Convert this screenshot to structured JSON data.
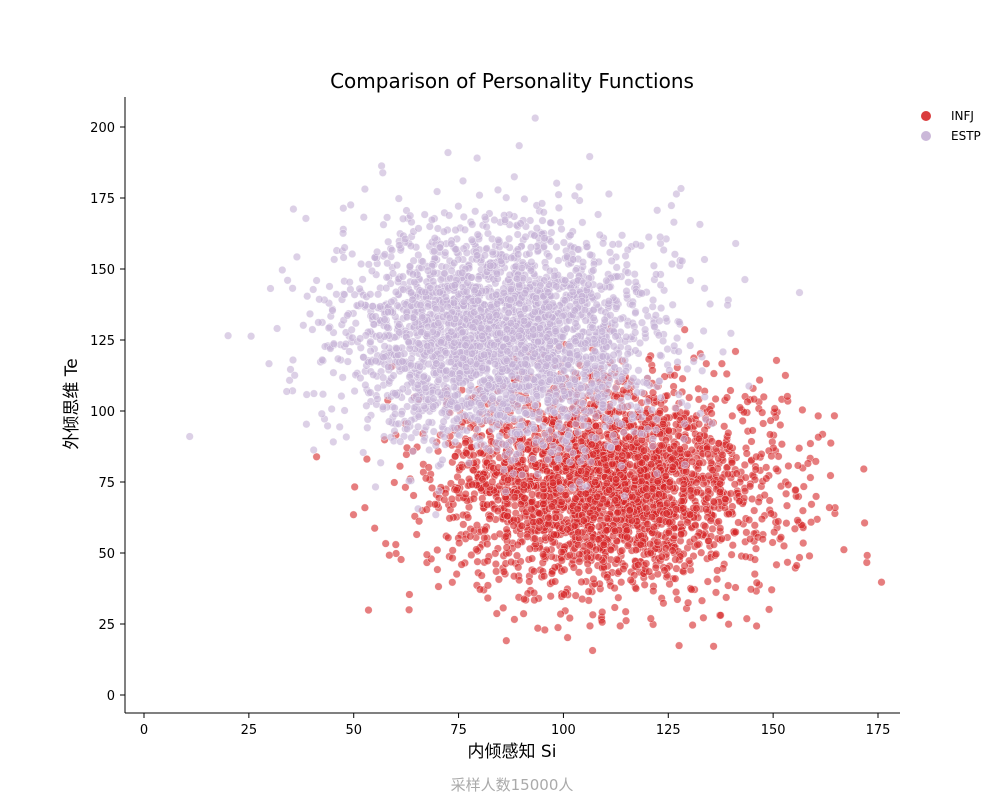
{
  "chart_data": {
    "type": "scatter",
    "title": "Comparison of Personality Functions",
    "xlabel": "内倾感知 Si",
    "ylabel": "外倾思维 Te",
    "xlim": [
      -4,
      181
    ],
    "ylim": [
      -5,
      211
    ],
    "xticks": [
      0,
      25,
      50,
      75,
      100,
      125,
      150,
      175
    ],
    "yticks": [
      0,
      25,
      50,
      75,
      100,
      125,
      150,
      175,
      200
    ],
    "grid": false,
    "legend_placement": "top-right outside",
    "footer": "采样人数15000人",
    "series": [
      {
        "name": "INFJ",
        "color": "#d62728",
        "distribution": "normal",
        "n": 3000,
        "mean_x": 110,
        "sd_x": 20,
        "mean_y": 74,
        "sd_y": 18,
        "seed": 7
      },
      {
        "name": "ESTP",
        "color": "#c5b0d5",
        "distribution": "normal",
        "n": 3000,
        "mean_x": 85,
        "sd_x": 19,
        "mean_y": 126,
        "sd_y": 19,
        "seed": 13
      }
    ]
  }
}
